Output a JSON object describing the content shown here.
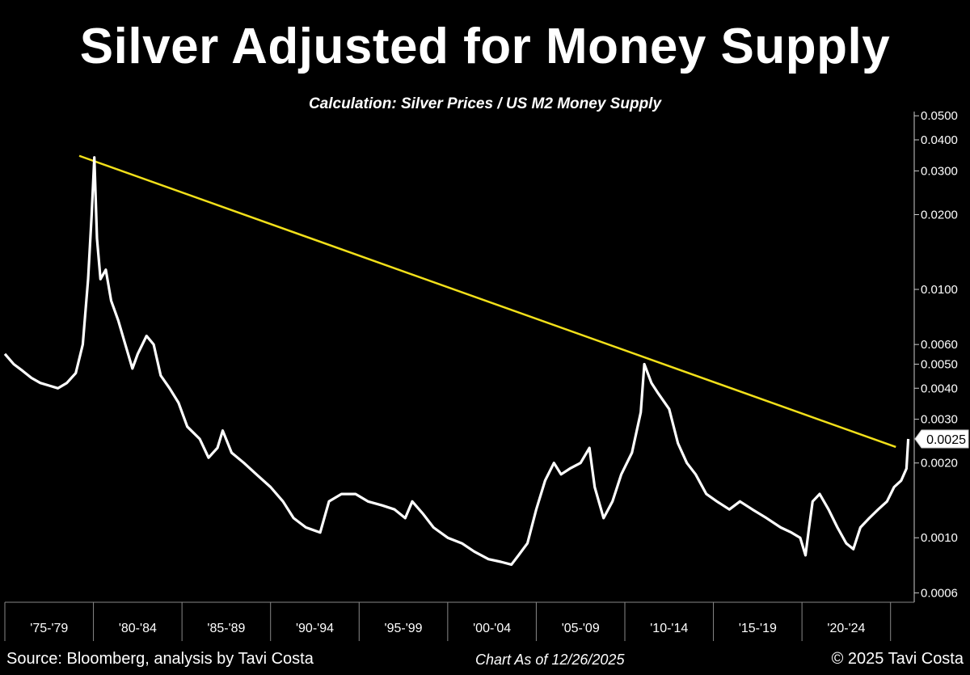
{
  "header": {
    "title": "Silver Adjusted for Money Supply",
    "subtitle": "Calculation: Silver Prices / US M2 Money Supply"
  },
  "footer": {
    "source": "Source: Bloomberg, analysis by Tavi Costa",
    "date": "Chart As of 12/26/2025",
    "copyright": "© 2025 Tavi Costa"
  },
  "chart_data": {
    "type": "line",
    "title": "Silver Adjusted for Money Supply",
    "subtitle": "Calculation: Silver Prices / US M2 Money Supply",
    "y_scale": "log",
    "ylim": [
      0.00055,
      0.052
    ],
    "xlim": [
      1975.0,
      2026.2
    ],
    "y_axis_position": "right",
    "grid": false,
    "yticks": [
      {
        "value": 0.05,
        "label": "0.0500"
      },
      {
        "value": 0.04,
        "label": "0.0400"
      },
      {
        "value": 0.03,
        "label": "0.0300"
      },
      {
        "value": 0.02,
        "label": "0.0200"
      },
      {
        "value": 0.01,
        "label": "0.0100"
      },
      {
        "value": 0.006,
        "label": "0.0060"
      },
      {
        "value": 0.005,
        "label": "0.0050"
      },
      {
        "value": 0.004,
        "label": "0.0040"
      },
      {
        "value": 0.003,
        "label": "0.0030"
      },
      {
        "value": 0.002,
        "label": "0.0020"
      },
      {
        "value": 0.001,
        "label": "0.0010"
      },
      {
        "value": 0.0006,
        "label": "0.0006"
      }
    ],
    "x_periods": [
      {
        "label": "'75-'79",
        "start": 1975,
        "end": 1980
      },
      {
        "label": "'80-'84",
        "start": 1980,
        "end": 1985
      },
      {
        "label": "'85-'89",
        "start": 1985,
        "end": 1990
      },
      {
        "label": "'90-'94",
        "start": 1990,
        "end": 1995
      },
      {
        "label": "'95-'99",
        "start": 1995,
        "end": 2000
      },
      {
        "label": "'00-'04",
        "start": 2000,
        "end": 2005
      },
      {
        "label": "'05-'09",
        "start": 2005,
        "end": 2010
      },
      {
        "label": "'10-'14",
        "start": 2010,
        "end": 2015
      },
      {
        "label": "'15-'19",
        "start": 2015,
        "end": 2020
      },
      {
        "label": "'20-'24",
        "start": 2020,
        "end": 2025
      }
    ],
    "last_value": {
      "value": 0.0025,
      "label": "0.0025"
    },
    "series": [
      {
        "color": "#ffffff",
        "x": [
          1975.0,
          1975.5,
          1976.0,
          1976.5,
          1977.0,
          1977.5,
          1978.0,
          1978.5,
          1979.0,
          1979.4,
          1979.7,
          1979.9,
          1980.05,
          1980.2,
          1980.4,
          1980.7,
          1981.0,
          1981.4,
          1981.8,
          1982.2,
          1982.5,
          1983.0,
          1983.4,
          1983.8,
          1984.3,
          1984.8,
          1985.3,
          1986.0,
          1986.5,
          1987.0,
          1987.3,
          1987.8,
          1988.5,
          1989.2,
          1990.0,
          1990.7,
          1991.3,
          1992.0,
          1992.8,
          1993.3,
          1994.0,
          1994.8,
          1995.5,
          1996.3,
          1997.0,
          1997.6,
          1998.0,
          1998.6,
          1999.2,
          2000.0,
          2000.8,
          2001.5,
          2002.3,
          2003.0,
          2003.6,
          2004.0,
          2004.5,
          2005.0,
          2005.5,
          2006.0,
          2006.4,
          2006.9,
          2007.5,
          2008.0,
          2008.3,
          2008.8,
          2009.3,
          2009.8,
          2010.4,
          2010.9,
          2011.1,
          2011.5,
          2011.9,
          2012.5,
          2013.0,
          2013.5,
          2014.0,
          2014.6,
          2015.2,
          2015.9,
          2016.5,
          2017.2,
          2018.0,
          2018.8,
          2019.4,
          2019.9,
          2020.2,
          2020.4,
          2020.6,
          2021.0,
          2021.5,
          2022.0,
          2022.5,
          2022.9,
          2023.3,
          2023.8,
          2024.3,
          2024.8,
          2025.2,
          2025.6,
          2025.9,
          2026.0
        ],
        "values": [
          0.0055,
          0.005,
          0.0047,
          0.0044,
          0.0042,
          0.0041,
          0.004,
          0.0042,
          0.0046,
          0.006,
          0.011,
          0.02,
          0.034,
          0.016,
          0.011,
          0.012,
          0.009,
          0.0075,
          0.006,
          0.0048,
          0.0055,
          0.0065,
          0.006,
          0.0045,
          0.004,
          0.0035,
          0.0028,
          0.0025,
          0.0021,
          0.0023,
          0.0027,
          0.0022,
          0.002,
          0.0018,
          0.0016,
          0.0014,
          0.0012,
          0.0011,
          0.00105,
          0.0014,
          0.0015,
          0.0015,
          0.0014,
          0.00135,
          0.0013,
          0.0012,
          0.0014,
          0.00125,
          0.0011,
          0.001,
          0.00095,
          0.00088,
          0.00082,
          0.0008,
          0.00078,
          0.00085,
          0.00095,
          0.0013,
          0.0017,
          0.002,
          0.0018,
          0.0019,
          0.002,
          0.0023,
          0.0016,
          0.0012,
          0.0014,
          0.0018,
          0.0022,
          0.0032,
          0.005,
          0.0042,
          0.0038,
          0.0033,
          0.0024,
          0.002,
          0.0018,
          0.0015,
          0.0014,
          0.0013,
          0.0014,
          0.0013,
          0.0012,
          0.0011,
          0.00105,
          0.001,
          0.00085,
          0.0011,
          0.0014,
          0.0015,
          0.0013,
          0.0011,
          0.00095,
          0.0009,
          0.0011,
          0.0012,
          0.0013,
          0.0014,
          0.0016,
          0.0017,
          0.0019,
          0.0025
        ]
      }
    ],
    "trendline": {
      "color": "#f2e01a",
      "points": [
        {
          "x": 1979.2,
          "y": 0.0345
        },
        {
          "x": 2025.3,
          "y": 0.00232
        }
      ]
    }
  }
}
